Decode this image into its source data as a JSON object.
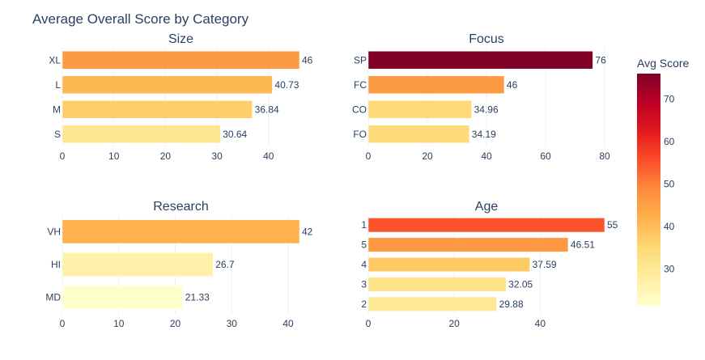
{
  "title": "Average Overall Score by Category",
  "chart_data": [
    {
      "type": "bar",
      "orientation": "horizontal",
      "title": "Size",
      "categories": [
        "XL",
        "L",
        "M",
        "S"
      ],
      "values": [
        46,
        40.73,
        36.84,
        30.64
      ],
      "value_labels": [
        "46",
        "40.73",
        "36.84",
        "30.64"
      ],
      "xlim": [
        0,
        46
      ],
      "xticks": [
        0,
        10,
        20,
        30,
        40
      ],
      "grid": true
    },
    {
      "type": "bar",
      "orientation": "horizontal",
      "title": "Focus",
      "categories": [
        "SP",
        "FC",
        "CO",
        "FO"
      ],
      "values": [
        76,
        46,
        34.96,
        34.19
      ],
      "value_labels": [
        "76",
        "46",
        "34.96",
        "34.19"
      ],
      "xlim": [
        0,
        80
      ],
      "xticks": [
        0,
        20,
        40,
        60,
        80
      ],
      "grid": true
    },
    {
      "type": "bar",
      "orientation": "horizontal",
      "title": "Research",
      "categories": [
        "VH",
        "HI",
        "MD"
      ],
      "values": [
        42,
        26.7,
        21.33
      ],
      "value_labels": [
        "42",
        "26.7",
        "21.33"
      ],
      "xlim": [
        0,
        42
      ],
      "xticks": [
        0,
        10,
        20,
        30,
        40
      ],
      "grid": true
    },
    {
      "type": "bar",
      "orientation": "horizontal",
      "title": "Age",
      "categories": [
        "1",
        "5",
        "4",
        "3",
        "2"
      ],
      "values": [
        55,
        46.51,
        37.59,
        32.05,
        29.88
      ],
      "value_labels": [
        "55",
        "46.51",
        "37.59",
        "32.05",
        "29.88"
      ],
      "xlim": [
        0,
        55
      ],
      "xticks": [
        0,
        20,
        40
      ],
      "grid": true
    }
  ],
  "colorbar": {
    "title": "Avg Score",
    "range": [
      21.33,
      76
    ],
    "ticks": [
      30,
      40,
      50,
      60,
      70
    ],
    "colorscale": [
      "#ffffcc",
      "#ffeda0",
      "#fed976",
      "#feb24c",
      "#fd8d3c",
      "#fc4e2a",
      "#e31a1c",
      "#bd0026",
      "#800026"
    ]
  }
}
